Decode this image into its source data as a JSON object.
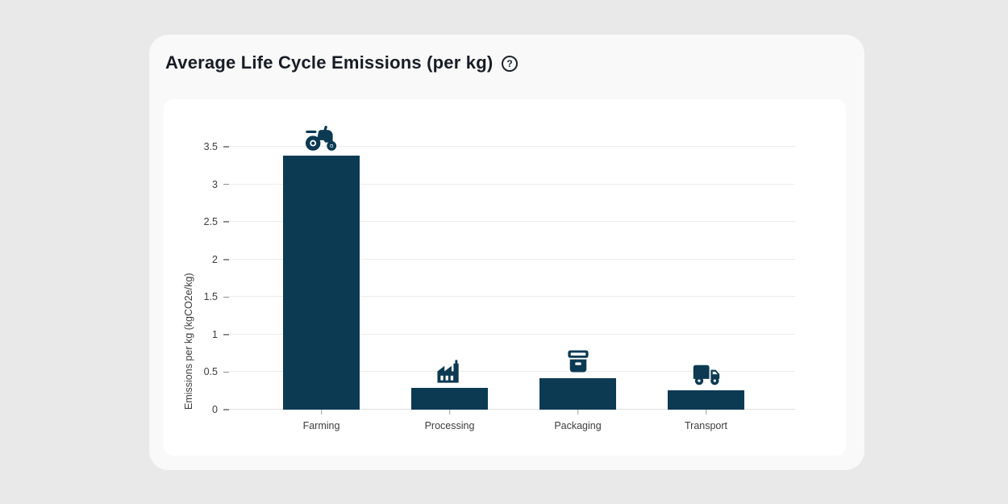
{
  "header": {
    "title": "Average Life Cycle Emissions (per kg)",
    "help_icon": "question-circle-icon"
  },
  "chart_data": {
    "type": "bar",
    "title": "Average Life Cycle Emissions (per kg)",
    "categories": [
      "Farming",
      "Processing",
      "Packaging",
      "Transport"
    ],
    "values": [
      3.38,
      0.29,
      0.42,
      0.26
    ],
    "category_icons": [
      "tractor-icon",
      "factory-icon",
      "box-icon",
      "truck-icon"
    ],
    "xlabel": "",
    "ylabel": "Emissions per kg (kgCO2e/kg)",
    "ylim": [
      0,
      3.5
    ],
    "ytick_step": 0.5,
    "ytick_labels": [
      "0",
      "0.5",
      "1",
      "1.5",
      "2",
      "2.5",
      "3",
      "3.5"
    ],
    "grid": true,
    "legend": "none",
    "bar_color": "#0c3a53"
  },
  "colors": {
    "page_bg": "#e9e9e9",
    "card_bg": "#f9f9f9",
    "panel_bg": "#ffffff",
    "bar": "#0c3a53",
    "title_text": "#171c26",
    "axis_text": "#3d3d3d",
    "gridline": "#ececec"
  }
}
